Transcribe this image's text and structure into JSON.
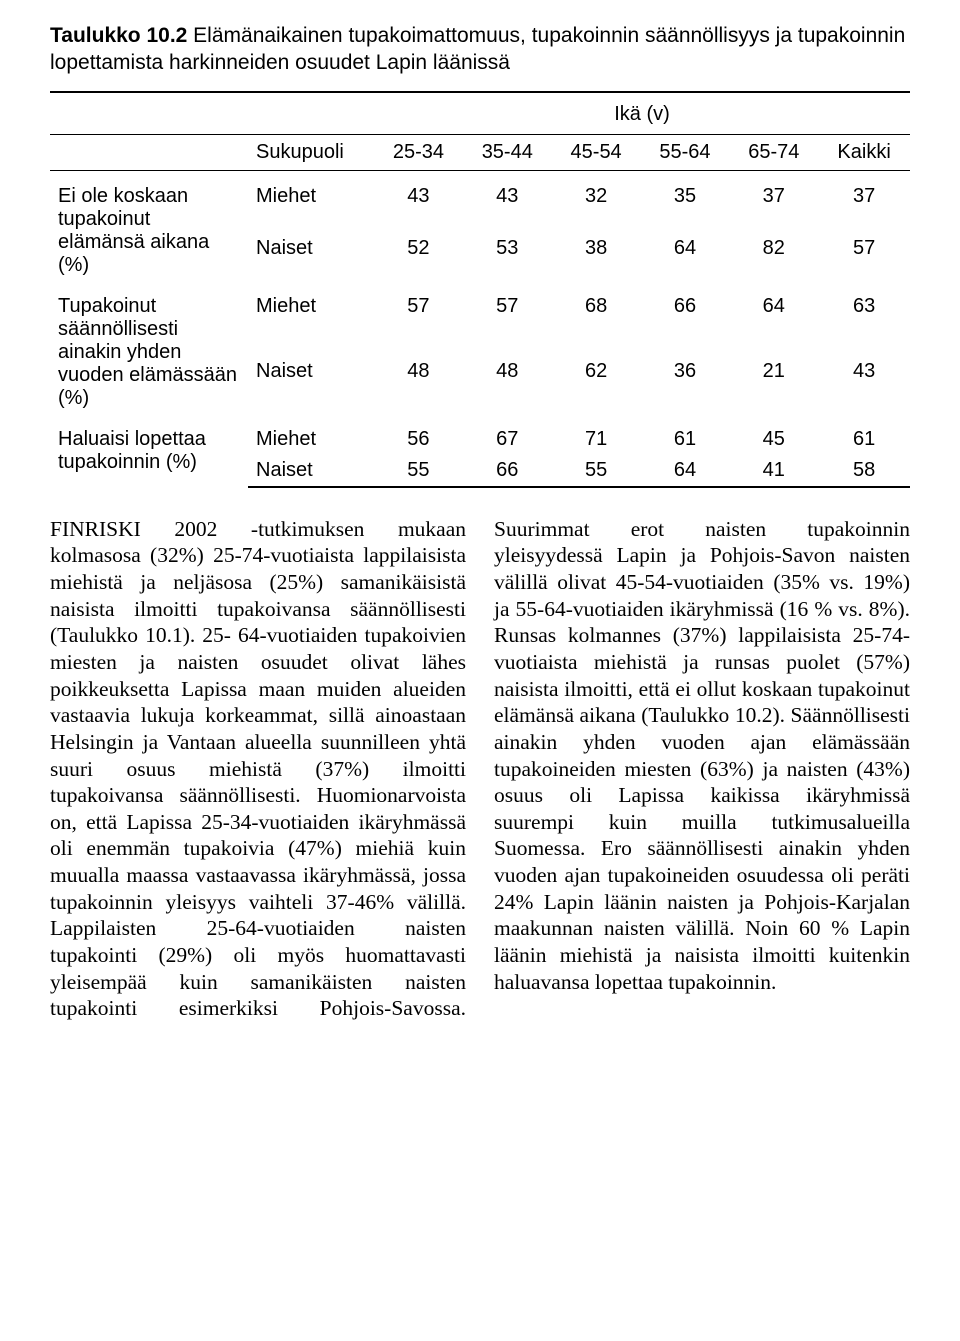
{
  "title": {
    "label": "Taulukko 10.2",
    "rest": " Elämänaikainen tupakoimattomuus, tupakoinnin säännöllisyys ja tupakoinnin lopettamista harkinneiden osuudet Lapin läänissä"
  },
  "table": {
    "ika_header": "Ikä (v)",
    "col_sukupuoli": "Sukupuoli",
    "age_cols": [
      "25-34",
      "35-44",
      "45-54",
      "55-64",
      "65-74",
      "Kaikki"
    ],
    "groups": [
      {
        "label": "Ei ole koskaan tupakoinut elämänsä aikana (%)",
        "rows": [
          {
            "sex": "Miehet",
            "vals": [
              "43",
              "43",
              "32",
              "35",
              "37",
              "37"
            ]
          },
          {
            "sex": "Naiset",
            "vals": [
              "52",
              "53",
              "38",
              "64",
              "82",
              "57"
            ]
          }
        ]
      },
      {
        "label": "Tupakoinut säännöllisesti ainakin yhden vuoden elämässään (%)",
        "rows": [
          {
            "sex": "Miehet",
            "vals": [
              "57",
              "57",
              "68",
              "66",
              "64",
              "63"
            ]
          },
          {
            "sex": "Naiset",
            "vals": [
              "48",
              "48",
              "62",
              "36",
              "21",
              "43"
            ]
          }
        ]
      },
      {
        "label": "Haluaisi lopettaa tupakoinnin (%)",
        "rows": [
          {
            "sex": "Miehet",
            "vals": [
              "56",
              "67",
              "71",
              "61",
              "45",
              "61"
            ]
          },
          {
            "sex": "Naiset",
            "vals": [
              "55",
              "66",
              "55",
              "64",
              "41",
              "58"
            ]
          }
        ]
      }
    ]
  },
  "body": {
    "para": "FINRISKI 2002 -tutkimuksen mukaan kolmasosa (32%) 25-74-vuotiaista lappilaisista miehistä ja neljäsosa (25%) samanikäisistä naisista ilmoitti tupakoivansa säännöllisesti (Taulukko 10.1). 25- 64-vuotiaiden tupakoivien miesten ja naisten osuudet olivat lähes poikkeuksetta Lapissa maan muiden alueiden vastaavia lukuja korkeammat, sillä ainoastaan Helsingin ja Vantaan alueella suunnilleen yhtä suuri osuus miehistä (37%) ilmoitti tupakoivansa säännöllisesti. Huomionarvoista on, että Lapissa 25-34-vuotiaiden ikäryhmässä oli enemmän tupakoivia (47%) miehiä kuin muualla maassa vastaavassa ikäryhmässä, jossa tupakoinnin yleisyys vaihteli 37-46% välillä. Lappilaisten 25-64-vuotiaiden naisten tupakointi (29%) oli myös huomattavasti yleisempää kuin samanikäisten naisten tupakointi esimerkiksi Pohjois-Savossa. Suurimmat erot naisten tupakoinnin yleisyydessä Lapin ja Pohjois-Savon naisten välillä olivat 45-54-vuotiaiden (35% vs. 19%) ja 55-64-vuotiaiden ikäryhmissä (16 % vs. 8%). Runsas kolmannes (37%) lappilaisista 25-74-vuotiaista miehistä ja runsas puolet (57%) naisista ilmoitti, että ei ollut koskaan tupakoinut elämänsä aikana (Taulukko 10.2). Säännöllisesti ainakin yhden vuoden ajan elämässään tupakoineiden miesten (63%) ja naisten (43%) osuus oli Lapissa kaikissa ikäryhmissä suurempi kuin muilla tutkimusalueilla Suomessa. Ero säännöllisesti ainakin yhden vuoden ajan tupakoineiden osuudessa oli peräti 24% Lapin läänin naisten ja Pohjois-Karjalan maakunnan naisten välillä. Noin 60 % Lapin läänin miehistä ja naisista ilmoitti kuitenkin haluavansa lopettaa tupakoinnin."
  }
}
